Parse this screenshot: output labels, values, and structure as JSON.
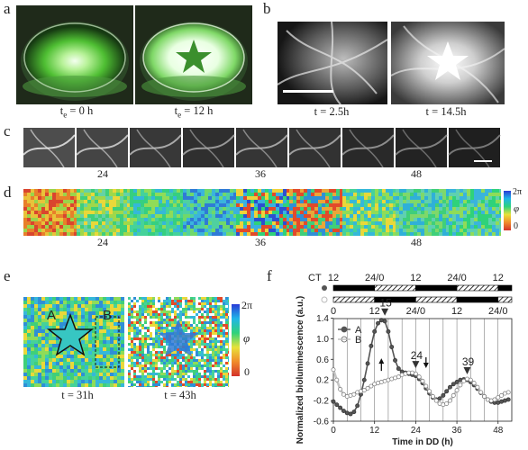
{
  "panel_labels": [
    "a",
    "b",
    "c",
    "d",
    "e",
    "f"
  ],
  "panel_a": {
    "captions": [
      {
        "pre": "t",
        "sub": "e",
        "post": " = 0 h"
      },
      {
        "pre": "t",
        "sub": "e",
        "post": " = 12 h"
      }
    ]
  },
  "panel_b": {
    "captions": [
      "t = 2.5h",
      "t = 14.5h"
    ]
  },
  "panel_c": {
    "ticks": [
      "24",
      "36",
      "48"
    ]
  },
  "panel_d": {
    "ticks": [
      "24",
      "36",
      "48"
    ],
    "colorbar": {
      "top": "2π",
      "mid": "φ",
      "bottom": "0"
    }
  },
  "panel_e": {
    "region_labels": [
      "A",
      "B"
    ],
    "captions": [
      "t = 31h",
      "t = 43h"
    ],
    "colorbar": {
      "top": "2π",
      "mid": "φ",
      "bottom": "0"
    }
  },
  "colors": {
    "series_a": "#555555",
    "series_b": "#bbbbbb",
    "grid": "#666666"
  },
  "chart_data": {
    "type": "line",
    "ylabel": "Normalized bioluminescence (a.u.)",
    "xlabel": "Time in DD (h)",
    "xlim": [
      0,
      52
    ],
    "ylim": [
      -0.6,
      1.6
    ],
    "xticks": [
      0,
      12,
      24,
      36,
      48
    ],
    "yticks": [
      "-0.6",
      "-0.2",
      "0.2",
      "0.6",
      "1.0",
      "1.4"
    ],
    "ytick_values": [
      -0.6,
      -0.2,
      0.2,
      0.6,
      1.0,
      1.4
    ],
    "ct_label": "CT",
    "ct_ticks": [
      {
        "x": 0,
        "label": "12"
      },
      {
        "x": 12,
        "label": "24/0"
      },
      {
        "x": 24,
        "label": "12"
      },
      {
        "x": 36,
        "label": "24/0"
      },
      {
        "x": 48,
        "label": "12"
      }
    ],
    "ct2_ticks": [
      {
        "x": 0,
        "label": "0"
      },
      {
        "x": 12,
        "label": "12"
      },
      {
        "x": 24,
        "label": "24/0"
      },
      {
        "x": 36,
        "label": "12"
      },
      {
        "x": 48,
        "label": "24/0"
      }
    ],
    "bar1": [
      {
        "from": 0,
        "to": 12,
        "kind": "black"
      },
      {
        "from": 12,
        "to": 24,
        "kind": "hatch"
      },
      {
        "from": 24,
        "to": 36,
        "kind": "black"
      },
      {
        "from": 36,
        "to": 48,
        "kind": "hatch"
      },
      {
        "from": 48,
        "to": 52,
        "kind": "black"
      }
    ],
    "bar2": [
      {
        "from": 0,
        "to": 12,
        "kind": "hatch"
      },
      {
        "from": 12,
        "to": 24,
        "kind": "black"
      },
      {
        "from": 24,
        "to": 36,
        "kind": "hatch"
      },
      {
        "from": 36,
        "to": 48,
        "kind": "black"
      },
      {
        "from": 48,
        "to": 52,
        "kind": "hatch"
      }
    ],
    "series": [
      {
        "name": "A",
        "marker": "filled",
        "x": [
          0,
          1,
          2,
          3,
          4,
          5,
          6,
          7,
          8,
          9,
          10,
          11,
          12,
          13,
          14,
          15,
          16,
          17,
          18,
          19,
          20,
          21,
          22,
          23,
          24,
          25,
          26,
          27,
          28,
          29,
          30,
          31,
          32,
          33,
          34,
          35,
          36,
          37,
          38,
          39,
          40,
          41,
          42,
          43,
          44,
          45,
          46,
          47,
          48,
          49,
          50,
          51
        ],
        "y": [
          -0.22,
          -0.28,
          -0.34,
          -0.4,
          -0.44,
          -0.46,
          -0.42,
          -0.3,
          -0.08,
          0.2,
          0.52,
          0.86,
          1.14,
          1.3,
          1.36,
          1.34,
          1.14,
          0.84,
          0.58,
          0.42,
          0.36,
          0.34,
          0.32,
          0.3,
          0.28,
          0.22,
          0.14,
          0.04,
          -0.06,
          -0.14,
          -0.18,
          -0.16,
          -0.1,
          -0.02,
          0.06,
          0.12,
          0.16,
          0.2,
          0.21,
          0.2,
          0.16,
          0.1,
          0.03,
          -0.05,
          -0.12,
          -0.18,
          -0.22,
          -0.24,
          -0.24,
          -0.22,
          -0.2,
          -0.18
        ]
      },
      {
        "name": "B",
        "marker": "open",
        "x": [
          0,
          1,
          2,
          3,
          4,
          5,
          6,
          7,
          8,
          9,
          10,
          11,
          12,
          13,
          14,
          15,
          16,
          17,
          18,
          19,
          20,
          21,
          22,
          23,
          24,
          25,
          26,
          27,
          28,
          29,
          30,
          31,
          32,
          33,
          34,
          35,
          36,
          37,
          38,
          39,
          40,
          41,
          42,
          43,
          44,
          45,
          46,
          47,
          48,
          49,
          50,
          51
        ],
        "y": [
          0.4,
          0.2,
          0.02,
          -0.08,
          -0.12,
          -0.1,
          -0.08,
          -0.04,
          -0.02,
          0.0,
          0.04,
          0.08,
          0.12,
          0.14,
          0.16,
          0.18,
          0.2,
          0.22,
          0.24,
          0.26,
          0.3,
          0.32,
          0.34,
          0.34,
          0.32,
          0.26,
          0.18,
          0.08,
          -0.02,
          -0.12,
          -0.2,
          -0.26,
          -0.28,
          -0.26,
          -0.2,
          -0.1,
          0.0,
          0.1,
          0.18,
          0.22,
          0.2,
          0.14,
          0.06,
          -0.04,
          -0.12,
          -0.18,
          -0.2,
          -0.18,
          -0.14,
          -0.1,
          -0.06,
          -0.04
        ]
      }
    ],
    "peak_labels": [
      {
        "label": "15",
        "x": 15
      },
      {
        "label": "24",
        "x": 24
      },
      {
        "label": "39",
        "x": 39
      }
    ],
    "legend_placement": "top-left"
  }
}
